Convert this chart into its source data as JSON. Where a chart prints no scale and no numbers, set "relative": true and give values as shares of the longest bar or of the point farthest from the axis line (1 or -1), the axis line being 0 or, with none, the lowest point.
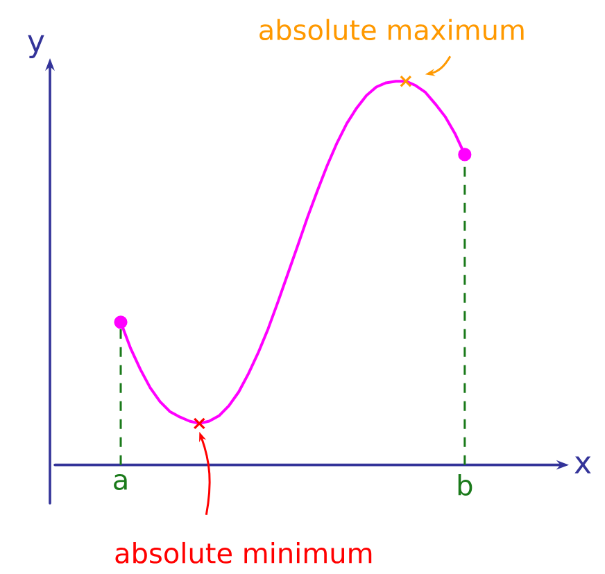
{
  "chart_data": {
    "type": "line",
    "relative": true,
    "xlabel": "x",
    "ylabel": "y",
    "categories": [
      "a",
      null,
      null,
      null,
      null,
      null,
      null,
      null,
      null,
      null,
      null,
      null,
      null,
      null,
      null,
      null,
      null,
      null,
      null,
      null,
      null,
      null,
      null,
      null,
      null,
      null,
      null,
      null,
      null,
      null,
      null,
      null,
      null,
      null,
      null,
      "b"
    ],
    "series": [
      {
        "type": "line",
        "color": "#ff00ff",
        "values": [
          0.372,
          0.304,
          0.249,
          0.201,
          0.165,
          0.139,
          0.125,
          0.114,
          0.108,
          0.114,
          0.128,
          0.154,
          0.19,
          0.238,
          0.293,
          0.355,
          0.425,
          0.498,
          0.571,
          0.645,
          0.714,
          0.78,
          0.839,
          0.89,
          0.93,
          0.963,
          0.985,
          0.996,
          1.0,
          1.0,
          0.989,
          0.971,
          0.941,
          0.908,
          0.864,
          0.809
        ]
      },
      {
        "type": "lollipop",
        "marker": "circle",
        "line_style": "dashed",
        "color": "#ff00ff",
        "values": [
          0.372,
          null,
          null,
          null,
          null,
          null,
          null,
          null,
          null,
          null,
          null,
          null,
          null,
          null,
          null,
          null,
          null,
          null,
          null,
          null,
          null,
          null,
          null,
          null,
          null,
          null,
          null,
          null,
          null,
          null,
          null,
          null,
          null,
          null,
          null,
          0.809
        ]
      },
      {
        "type": "scatter",
        "marker": "cross",
        "colors": [
          null,
          null,
          null,
          null,
          null,
          null,
          null,
          null,
          "#ff0000",
          null,
          null,
          null,
          null,
          null,
          null,
          null,
          null,
          null,
          null,
          null,
          null,
          null,
          null,
          null,
          null,
          null,
          null,
          null,
          null,
          "#ff9900",
          null,
          null,
          null,
          null,
          null,
          null
        ],
        "values": [
          null,
          null,
          null,
          null,
          null,
          null,
          null,
          null,
          0.108,
          null,
          null,
          null,
          null,
          null,
          null,
          null,
          null,
          null,
          null,
          null,
          null,
          null,
          null,
          null,
          null,
          null,
          null,
          null,
          null,
          1.0,
          null,
          null,
          null,
          null,
          null,
          null
        ]
      }
    ],
    "annotations": [
      {
        "text": "absolute maximum",
        "y": 1.0
      },
      "absolute minimum"
    ]
  }
}
